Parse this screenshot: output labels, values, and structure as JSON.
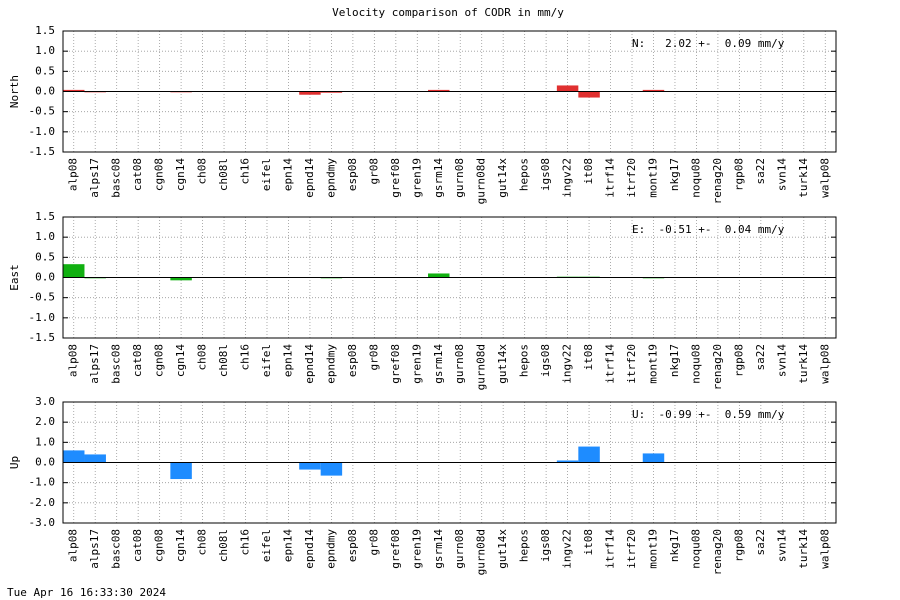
{
  "title": "Velocity comparison of CODR in mm/y",
  "timestamp": "Tue Apr 16 16:33:30 2024",
  "chart_data": [
    {
      "type": "bar",
      "ylabel": "North",
      "annotation": "N:   2.02 +-  0.09 mm/y",
      "color": "#e03030",
      "grid": true,
      "categories": [
        "alp08",
        "alps17",
        "basc08",
        "cat08",
        "cgn08",
        "cgn14",
        "ch08",
        "ch08l",
        "ch16",
        "eifel",
        "epn14",
        "epnd14",
        "epndmy",
        "esp08",
        "gr08",
        "gref08",
        "gren19",
        "gsrm14",
        "gurn08",
        "gurn08d",
        "gut14x",
        "hepos",
        "igs08",
        "ingv22",
        "it08",
        "itrf14",
        "itrf20",
        "mont19",
        "nkg17",
        "noqu08",
        "renag20",
        "rgp08",
        "sa22",
        "svn14",
        "turk14",
        "walp08"
      ],
      "values": [
        0.04,
        -0.02,
        0,
        0,
        0,
        -0.02,
        0,
        0,
        0,
        0,
        0,
        -0.08,
        -0.03,
        0,
        0,
        0,
        0,
        0.04,
        0,
        0,
        0,
        0,
        0,
        0.15,
        -0.15,
        0,
        0,
        0.04,
        0,
        0,
        0,
        0,
        0,
        0,
        0,
        0
      ],
      "ylim": [
        -1.5,
        1.5
      ],
      "yticks": [
        -1.5,
        {
          "value": -1,
          "label": "-1.0"
        },
        -0.5,
        {
          "value": 0,
          "label": "0.0"
        },
        0.5,
        {
          "value": 1,
          "label": "1.0"
        },
        1.5
      ]
    },
    {
      "type": "bar",
      "ylabel": "East",
      "annotation": "E:  -0.51 +-  0.04 mm/y",
      "color": "#10b010",
      "grid": true,
      "categories": [
        "alp08",
        "alps17",
        "basc08",
        "cat08",
        "cgn08",
        "cgn14",
        "ch08",
        "ch08l",
        "ch16",
        "eifel",
        "epn14",
        "epnd14",
        "epndmy",
        "esp08",
        "gr08",
        "gref08",
        "gren19",
        "gsrm14",
        "gurn08",
        "gurn08d",
        "gut14x",
        "hepos",
        "igs08",
        "ingv22",
        "it08",
        "itrf14",
        "itrf20",
        "mont19",
        "nkg17",
        "noqu08",
        "renag20",
        "rgp08",
        "sa22",
        "svn14",
        "turk14",
        "walp08"
      ],
      "values": [
        0.33,
        -0.02,
        0,
        0,
        0,
        -0.07,
        0,
        0,
        0,
        0,
        0,
        0,
        -0.02,
        0,
        0,
        0,
        0,
        0.1,
        0,
        0,
        0,
        0,
        0,
        0.02,
        0.02,
        0,
        0,
        -0.02,
        0,
        0,
        0,
        0,
        0,
        0,
        0,
        0
      ],
      "ylim": [
        -1.5,
        1.5
      ],
      "yticks": [
        -1.5,
        {
          "value": -1,
          "label": "-1.0"
        },
        -0.5,
        {
          "value": 0,
          "label": "0.0"
        },
        0.5,
        {
          "value": 1,
          "label": "1.0"
        },
        1.5
      ]
    },
    {
      "type": "bar",
      "ylabel": "Up",
      "annotation": "U:  -0.99 +-  0.59 mm/y",
      "color": "#1e8cff",
      "grid": true,
      "categories": [
        "alp08",
        "alps17",
        "basc08",
        "cat08",
        "cgn08",
        "cgn14",
        "ch08",
        "ch08l",
        "ch16",
        "eifel",
        "epn14",
        "epnd14",
        "epndmy",
        "esp08",
        "gr08",
        "gref08",
        "gren19",
        "gsrm14",
        "gurn08",
        "gurn08d",
        "gut14x",
        "hepos",
        "igs08",
        "ingv22",
        "it08",
        "itrf14",
        "itrf20",
        "mont19",
        "nkg17",
        "noqu08",
        "renag20",
        "rgp08",
        "sa22",
        "svn14",
        "turk14",
        "walp08"
      ],
      "values": [
        0.6,
        0.4,
        0,
        0,
        0,
        -0.82,
        0,
        0,
        0,
        0,
        0,
        -0.35,
        -0.65,
        0,
        0,
        0,
        0,
        0,
        0,
        0,
        0,
        0,
        0,
        0.1,
        0.79,
        0,
        0,
        0.45,
        0,
        0,
        0,
        0,
        0,
        0,
        0,
        0
      ],
      "ylim": [
        -3,
        3
      ],
      "yticks": [
        {
          "value": -3,
          "label": "-3.0"
        },
        {
          "value": -2,
          "label": "-2.0"
        },
        {
          "value": -1,
          "label": "-1.0"
        },
        {
          "value": 0,
          "label": "0.0"
        },
        {
          "value": 1,
          "label": "1.0"
        },
        {
          "value": 2,
          "label": "2.0"
        },
        {
          "value": 3,
          "label": "3.0"
        }
      ]
    }
  ]
}
